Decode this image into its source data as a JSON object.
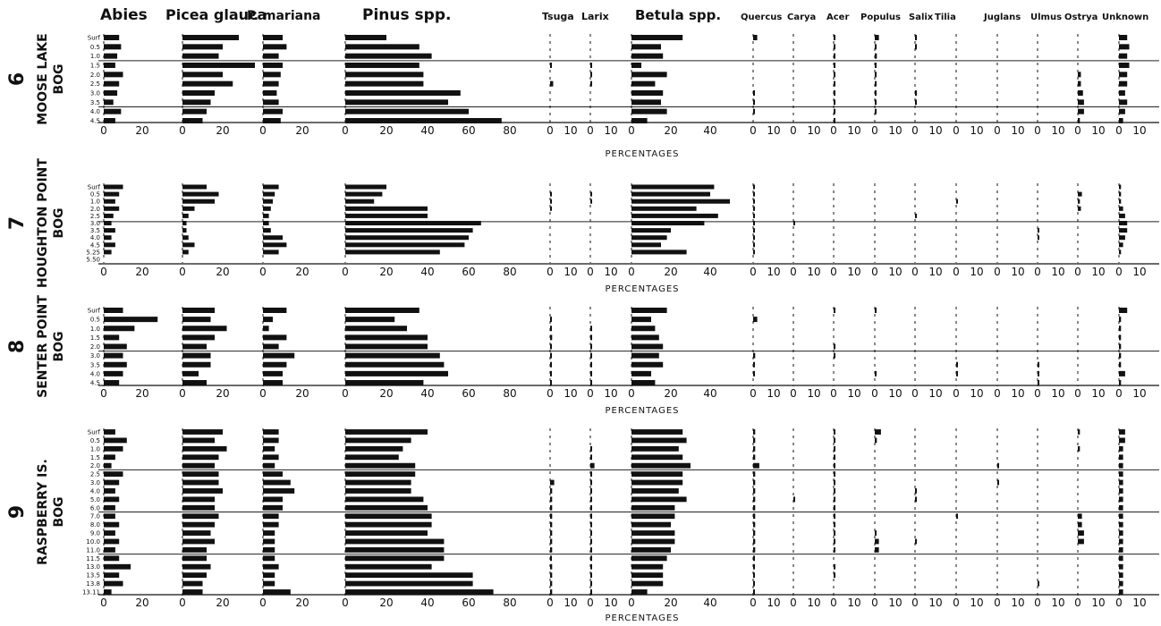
{
  "chart_data": {
    "type": "bar",
    "orientation": "horizontal",
    "taxa": [
      {
        "id": "abies",
        "label": "Abies",
        "scale_max": 20,
        "ticks": [
          "0",
          "20"
        ]
      },
      {
        "id": "picea_glauca",
        "label": "Picea glauca",
        "scale_max": 20,
        "ticks": [
          "0",
          "20"
        ]
      },
      {
        "id": "p_mariana",
        "label": "P. mariana",
        "scale_max": 20,
        "ticks": [
          "0",
          "20"
        ]
      },
      {
        "id": "pinus",
        "label": "Pinus spp.",
        "scale_max": 80,
        "ticks": [
          "0",
          "20",
          "40",
          "60",
          "80"
        ]
      },
      {
        "id": "tsuga",
        "label": "Tsuga",
        "scale_max": 10,
        "ticks": [
          "0",
          "10"
        ]
      },
      {
        "id": "larix",
        "label": "Larix",
        "scale_max": 10,
        "ticks": [
          "0",
          "10"
        ]
      },
      {
        "id": "betula",
        "label": "Betula spp.",
        "scale_max": 40,
        "ticks": [
          "0",
          "20",
          "40"
        ]
      },
      {
        "id": "quercus",
        "label": "Quercus",
        "scale_max": 10,
        "ticks": [
          "0",
          "10"
        ]
      },
      {
        "id": "carya",
        "label": "Carya",
        "scale_max": 10,
        "ticks": [
          "0",
          "10"
        ]
      },
      {
        "id": "acer",
        "label": "Acer",
        "scale_max": 10,
        "ticks": [
          "0",
          "10"
        ]
      },
      {
        "id": "populus",
        "label": "Populus",
        "scale_max": 10,
        "ticks": [
          "0",
          "10"
        ]
      },
      {
        "id": "salix",
        "label": "Salix",
        "scale_max": 10,
        "ticks": [
          "0",
          "10"
        ]
      },
      {
        "id": "tilia",
        "label": "Tilia",
        "scale_max": 10,
        "ticks": [
          "0",
          "10"
        ]
      },
      {
        "id": "juglans",
        "label": "Juglans",
        "scale_max": 10,
        "ticks": [
          "0",
          "10"
        ]
      },
      {
        "id": "ulmus",
        "label": "Ulmus",
        "scale_max": 10,
        "ticks": [
          "0",
          "10"
        ]
      },
      {
        "id": "ostrya",
        "label": "Ostrya",
        "scale_max": 10,
        "ticks": [
          "0",
          "10"
        ]
      },
      {
        "id": "unknown",
        "label": "Unknown",
        "scale_max": 10,
        "ticks": [
          "0",
          "10"
        ]
      }
    ],
    "xlabel": "PERCENTAGES",
    "sites": [
      {
        "number": "6",
        "name_line1": "MOOSE LAKE",
        "name_line2": "BOG",
        "depths": [
          "Surf",
          "0.5",
          "1.0",
          "1.5",
          "2.0",
          "2.5",
          "3.0",
          "3.5",
          "4.0",
          "4.5"
        ],
        "values": {
          "abies": [
            8,
            9,
            7,
            6,
            10,
            8,
            7,
            5,
            9,
            6
          ],
          "picea_glauca": [
            28,
            20,
            18,
            36,
            20,
            25,
            16,
            14,
            12,
            10
          ],
          "p_mariana": [
            10,
            12,
            8,
            10,
            9,
            8,
            7,
            8,
            10,
            9
          ],
          "pinus": [
            20,
            36,
            42,
            36,
            38,
            38,
            56,
            50,
            60,
            76
          ],
          "tsuga": [
            0,
            0,
            0,
            0.4,
            0,
            1.5,
            0,
            0,
            0,
            0
          ],
          "larix": [
            0,
            0,
            0,
            0.4,
            0.4,
            0.4,
            0,
            0,
            0,
            0
          ],
          "betula": [
            26,
            15,
            16,
            5,
            18,
            12,
            16,
            15,
            18,
            8
          ],
          "quercus": [
            2,
            0,
            0,
            0,
            0,
            0,
            0.5,
            0.5,
            0.5,
            0
          ],
          "carya": [
            0,
            0,
            0,
            0,
            0,
            0,
            0,
            0,
            0,
            0
          ],
          "acer": [
            0.5,
            0.5,
            0.5,
            0.5,
            0.5,
            0.5,
            0.5,
            0.5,
            0.5,
            0.5
          ],
          "populus": [
            2,
            0.5,
            1,
            0.5,
            0.5,
            0.5,
            0.5,
            0.5,
            0.5,
            0
          ],
          "salix": [
            0.4,
            0.4,
            0,
            0,
            0,
            0,
            0.4,
            0.4,
            0,
            0
          ],
          "tilia": [
            0,
            0,
            0,
            0,
            0,
            0,
            0,
            0,
            0,
            0
          ],
          "juglans": [
            0,
            0,
            0,
            0,
            0,
            0,
            0,
            0,
            0,
            0
          ],
          "ulmus": [
            0,
            0,
            0,
            0,
            0,
            0,
            0,
            0,
            0,
            0
          ],
          "ostrya": [
            0,
            0,
            0,
            0,
            1.5,
            1.5,
            2.5,
            3,
            3,
            1
          ],
          "unknown": [
            4,
            5,
            4,
            5,
            4,
            4,
            3,
            4,
            3,
            2
          ]
        }
      },
      {
        "number": "7",
        "name_line1": "HOUGHTON POINT",
        "name_line2": "BOG",
        "depths": [
          "Surf",
          "0.5",
          "1.0",
          "2.0",
          "2.5",
          "3.0",
          "3.5",
          "4.0",
          "4.5",
          "5.25",
          "5.50"
        ],
        "values": {
          "abies": [
            10,
            8,
            6,
            8,
            5,
            4,
            6,
            4,
            6,
            4,
            0
          ],
          "picea_glauca": [
            12,
            18,
            16,
            6,
            3,
            2,
            2,
            3,
            6,
            3,
            0
          ],
          "p_mariana": [
            8,
            6,
            5,
            4,
            3,
            3,
            4,
            10,
            12,
            8,
            0
          ],
          "pinus": [
            20,
            18,
            14,
            40,
            40,
            66,
            62,
            60,
            58,
            46,
            0
          ],
          "tsuga": [
            0,
            0.4,
            0.4,
            0.4,
            0,
            0,
            0,
            0,
            0,
            0,
            0
          ],
          "larix": [
            0,
            0.4,
            0.4,
            0,
            0,
            0,
            0,
            0,
            0,
            0,
            0
          ],
          "betula": [
            42,
            40,
            50,
            33,
            44,
            37,
            20,
            18,
            15,
            28,
            0
          ],
          "quercus": [
            0.4,
            0.4,
            0.4,
            0.4,
            0.4,
            0.4,
            0.4,
            0.4,
            0.4,
            0.4,
            0
          ],
          "carya": [
            0,
            0,
            0,
            0,
            0,
            0.4,
            0,
            0,
            0,
            0,
            0
          ],
          "acer": [
            0,
            0,
            0,
            0,
            0,
            0,
            0,
            0,
            0,
            0,
            0
          ],
          "populus": [
            0,
            0,
            0,
            0,
            0,
            0,
            0,
            0,
            0,
            0,
            0
          ],
          "salix": [
            0,
            0,
            0,
            0,
            0.4,
            0,
            0,
            0,
            0,
            0,
            0
          ],
          "tilia": [
            0,
            0,
            0.4,
            0,
            0,
            0,
            0,
            0,
            0,
            0,
            0
          ],
          "juglans": [
            0,
            0,
            0,
            0,
            0,
            0,
            0,
            0,
            0,
            0,
            0
          ],
          "ulmus": [
            0,
            0,
            0,
            0,
            0,
            0,
            0.4,
            0.4,
            0,
            0,
            0
          ],
          "ostrya": [
            0,
            2,
            1,
            1.5,
            0,
            0,
            0,
            0,
            0,
            0,
            0
          ],
          "unknown": [
            1,
            1,
            1,
            2,
            3,
            4,
            4,
            3,
            2,
            1,
            0
          ]
        }
      },
      {
        "number": "8",
        "name_line1": "SENTER POINT",
        "name_line2": "BOG",
        "depths": [
          "Surf",
          "0.5",
          "1.0",
          "1.5",
          "2.0",
          "3.0",
          "3.5",
          "4.0",
          "4.5"
        ],
        "values": {
          "abies": [
            10,
            28,
            16,
            8,
            12,
            10,
            12,
            10,
            8
          ],
          "picea_glauca": [
            16,
            14,
            22,
            16,
            12,
            14,
            14,
            8,
            12
          ],
          "p_mariana": [
            12,
            5,
            3,
            12,
            8,
            16,
            12,
            10,
            10
          ],
          "pinus": [
            36,
            24,
            30,
            40,
            40,
            46,
            48,
            50,
            38
          ],
          "tsuga": [
            0,
            0.6,
            0.6,
            1,
            0.6,
            0.6,
            0.6,
            0.6,
            0.6
          ],
          "larix": [
            0,
            0,
            0.4,
            0.4,
            0.4,
            0.4,
            0.4,
            0.4,
            0.4
          ],
          "betula": [
            18,
            10,
            12,
            14,
            16,
            14,
            16,
            10,
            12
          ],
          "quercus": [
            0,
            2,
            0,
            0,
            0,
            1,
            0.5,
            0.5,
            0
          ],
          "carya": [
            0,
            0,
            0,
            0,
            0,
            0,
            0,
            0,
            0
          ],
          "acer": [
            0.5,
            0,
            0,
            0,
            0.5,
            0.5,
            0,
            0,
            0
          ],
          "populus": [
            0.5,
            0,
            0,
            0,
            0,
            0,
            0,
            0.5,
            0
          ],
          "salix": [
            0,
            0,
            0,
            0,
            0,
            0,
            0,
            0,
            0
          ],
          "tilia": [
            0,
            0,
            0,
            0,
            0,
            0,
            0.4,
            0.4,
            0
          ],
          "juglans": [
            0,
            0,
            0,
            0,
            0,
            0,
            0,
            0,
            0
          ],
          "ulmus": [
            0,
            0,
            0,
            0,
            0,
            0,
            0.6,
            0.6,
            0.6
          ],
          "ostrya": [
            0,
            0,
            0,
            0,
            0,
            0,
            0,
            0,
            0
          ],
          "unknown": [
            4,
            1,
            1,
            1,
            1,
            1,
            1,
            3,
            1
          ]
        }
      },
      {
        "number": "9",
        "name_line1": "RASPBERRY IS.",
        "name_line2": "BOG",
        "depths": [
          "Surf",
          "0.5",
          "1.0",
          "1.5",
          "2.0",
          "2.5",
          "3.0",
          "4.0",
          "5.0",
          "6.0",
          "7.0",
          "8.0",
          "9.0",
          "10.0",
          "11.0",
          "11.5",
          "13.0",
          "13.5",
          "13.8",
          "13.11"
        ],
        "values": {
          "abies": [
            6,
            12,
            10,
            6,
            4,
            10,
            8,
            6,
            8,
            6,
            6,
            8,
            6,
            8,
            6,
            8,
            14,
            8,
            10,
            4
          ],
          "picea_glauca": [
            20,
            16,
            22,
            18,
            16,
            18,
            18,
            20,
            16,
            16,
            18,
            16,
            14,
            16,
            12,
            12,
            14,
            12,
            10,
            10
          ],
          "p_mariana": [
            8,
            8,
            6,
            8,
            6,
            10,
            14,
            16,
            10,
            10,
            8,
            8,
            6,
            6,
            6,
            6,
            8,
            6,
            6,
            14
          ],
          "pinus": [
            40,
            32,
            28,
            26,
            34,
            34,
            32,
            32,
            38,
            40,
            42,
            42,
            40,
            48,
            48,
            48,
            42,
            62,
            62,
            72
          ],
          "tsuga": [
            0,
            0,
            0,
            0,
            0,
            0,
            2,
            1,
            1,
            1,
            1,
            1,
            1,
            1,
            1,
            0.4,
            1,
            1,
            1,
            1
          ],
          "larix": [
            0,
            0,
            0.4,
            0.4,
            2,
            0.4,
            0.4,
            0.4,
            0.4,
            0.4,
            0.4,
            0.4,
            0.4,
            0.4,
            0.4,
            0.4,
            0.4,
            0.4,
            0.4,
            0.4
          ],
          "betula": [
            26,
            28,
            24,
            26,
            30,
            26,
            26,
            24,
            28,
            22,
            22,
            20,
            22,
            22,
            20,
            18,
            16,
            16,
            16,
            8
          ],
          "quercus": [
            1,
            1,
            1,
            1,
            3,
            1,
            1,
            1,
            1,
            1,
            1,
            1,
            1,
            1,
            1,
            0.5,
            0.5,
            0.5,
            0.5,
            0.5
          ],
          "carya": [
            0,
            0,
            0,
            0,
            0,
            0,
            0,
            0,
            0.4,
            0,
            0,
            0,
            0,
            0,
            0,
            0,
            0,
            0,
            0,
            0
          ],
          "acer": [
            0.4,
            0.4,
            0.8,
            0.4,
            0.4,
            0.4,
            0.4,
            0.4,
            0.4,
            0.4,
            0.4,
            0.4,
            0.4,
            0.4,
            0.4,
            0,
            0.4,
            0.4,
            0,
            0
          ],
          "populus": [
            3,
            1,
            0,
            0,
            0,
            0,
            0,
            0,
            0,
            0,
            0,
            0,
            0.4,
            2,
            2,
            0,
            0,
            0,
            0,
            0
          ],
          "salix": [
            0,
            0,
            0,
            0,
            0,
            0,
            0,
            0.4,
            0.4,
            0,
            0,
            0,
            0,
            0.4,
            0,
            0,
            0,
            0,
            0,
            0
          ],
          "tilia": [
            0,
            0,
            0,
            0,
            0,
            0,
            0,
            0,
            0,
            0,
            0.4,
            0,
            0,
            0,
            0,
            0,
            0,
            0,
            0,
            0
          ],
          "juglans": [
            0,
            0,
            0,
            0,
            0.4,
            0,
            0.4,
            0,
            0,
            0,
            0,
            0,
            0,
            0,
            0,
            0,
            0,
            0,
            0,
            0
          ],
          "ulmus": [
            0,
            0,
            0,
            0,
            0,
            0,
            0,
            0,
            0,
            0,
            0,
            0,
            0,
            0,
            0,
            0,
            0,
            0,
            0.4,
            0
          ],
          "ostrya": [
            1,
            0,
            1,
            0,
            0,
            0,
            0,
            0,
            0,
            0,
            2,
            2,
            3,
            3,
            0,
            0,
            0,
            0,
            0,
            0
          ],
          "unknown": [
            3,
            3,
            2,
            2,
            2,
            2,
            2,
            2,
            2,
            2,
            2,
            2,
            2,
            2,
            2,
            2,
            2,
            2,
            2,
            2
          ]
        }
      }
    ]
  }
}
